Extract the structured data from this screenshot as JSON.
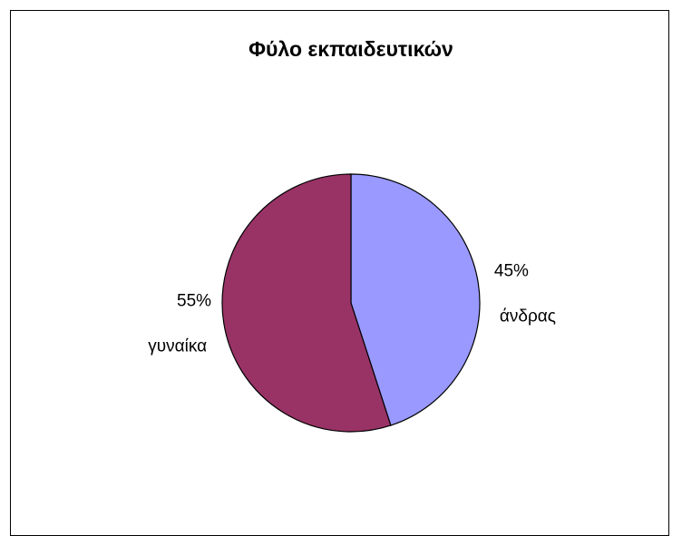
{
  "chart_data": {
    "type": "pie",
    "title": "Φύλο εκπαιδευτικών",
    "slices": [
      {
        "label": "άνδρας",
        "value": 45,
        "value_label": "45%",
        "color": "#9999FF"
      },
      {
        "label": "γυναίκα",
        "value": 55,
        "value_label": "55%",
        "color": "#993366"
      }
    ],
    "start_angle": "12 o'clock",
    "direction": "clockwise",
    "legend": "none",
    "data_labels": "outside, percent above category name"
  }
}
